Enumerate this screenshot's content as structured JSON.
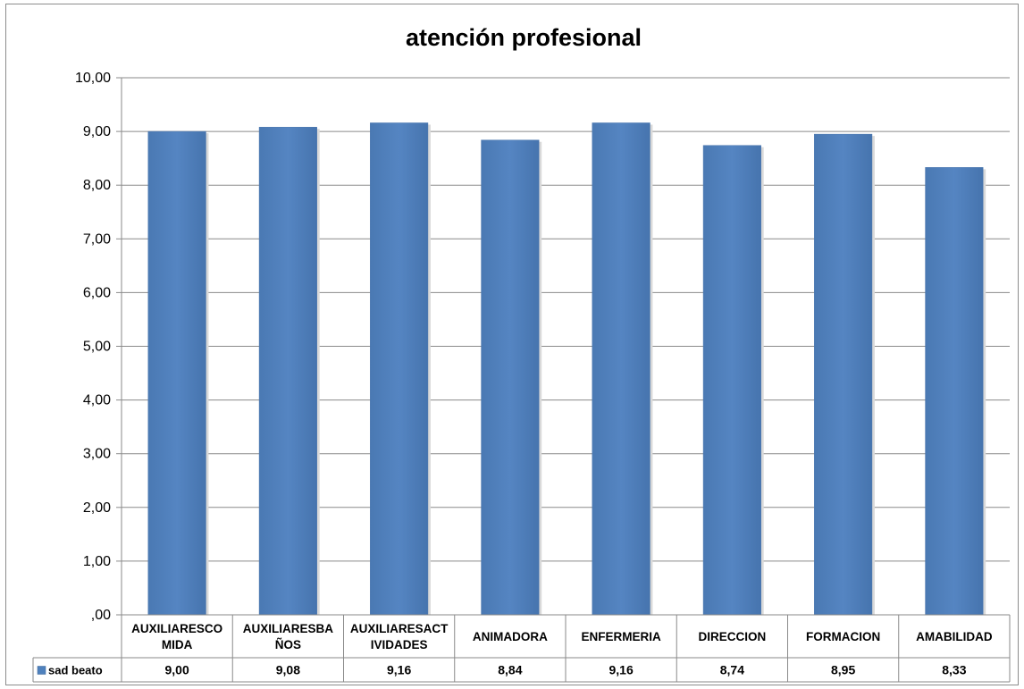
{
  "chart_data": {
    "type": "bar",
    "title": "atención profesional",
    "categories": [
      [
        "AUXILIARESCO",
        "MIDA"
      ],
      [
        "AUXILIARESBA",
        "ÑOS"
      ],
      [
        "AUXILIARESACT",
        "IVIDADES"
      ],
      [
        "ANIMADORA"
      ],
      [
        "ENFERMERIA"
      ],
      [
        "DIRECCION"
      ],
      [
        "FORMACION"
      ],
      [
        "AMABILIDAD"
      ]
    ],
    "series": [
      {
        "name": "sad beato",
        "values": [
          9.0,
          9.08,
          9.16,
          8.84,
          9.16,
          8.74,
          8.95,
          8.33
        ],
        "labels": [
          "9,00",
          "9,08",
          "9,16",
          "8,84",
          "9,16",
          "8,74",
          "8,95",
          "8,33"
        ],
        "color": "#4f81bd"
      }
    ],
    "ylim": [
      0,
      10
    ],
    "yticks": [
      ",00",
      "1,00",
      "2,00",
      "3,00",
      "4,00",
      "5,00",
      "6,00",
      "7,00",
      "8,00",
      "9,00",
      "10,00"
    ],
    "grid": true,
    "legend": "data-table-left"
  }
}
